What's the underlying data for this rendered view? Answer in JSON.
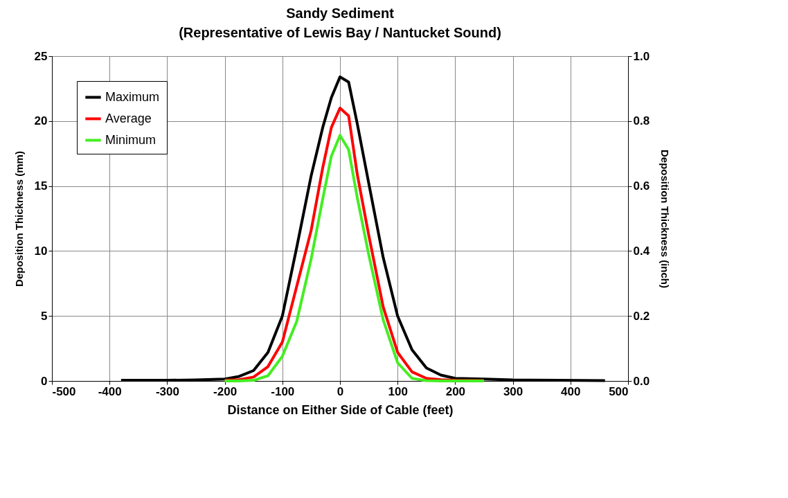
{
  "chart_data": {
    "type": "line",
    "title": "Sandy Sediment",
    "subtitle": "(Representative of Lewis Bay / Nantucket Sound)",
    "xlabel": "Distance on Either Side of Cable (feet)",
    "ylabel": "Deposition Thickness (mm)",
    "y2label": "Deposition Thickness (inch)",
    "xlim": [
      -500,
      500
    ],
    "xticks": [
      -500,
      -400,
      -300,
      -200,
      -100,
      0,
      100,
      200,
      300,
      400,
      500
    ],
    "ylim": [
      0,
      25
    ],
    "yticks": [
      0,
      5,
      10,
      15,
      20,
      25
    ],
    "y2lim": [
      0,
      1
    ],
    "y2ticks": [
      {
        "value": 0,
        "label": "0.0"
      },
      0.2,
      0.4,
      0.6,
      0.8,
      {
        "value": 1,
        "label": "1.0"
      }
    ],
    "grid": true,
    "legend": "top left",
    "marker": "none",
    "line_style": "solid",
    "series": [
      {
        "name": "Maximum",
        "color": "#000000",
        "x": [
          -380,
          -300,
          -250,
          -200,
          -175,
          -150,
          -125,
          -100,
          -75,
          -50,
          -30,
          -15,
          0,
          15,
          30,
          50,
          75,
          100,
          125,
          150,
          175,
          200,
          250,
          300,
          380,
          460
        ],
        "values": [
          0.05,
          0.05,
          0.08,
          0.15,
          0.35,
          0.8,
          2.2,
          5.0,
          10.3,
          15.8,
          19.5,
          21.8,
          23.4,
          23.0,
          19.8,
          15.2,
          9.5,
          5.0,
          2.4,
          1.0,
          0.45,
          0.2,
          0.15,
          0.08,
          0.05,
          0.03
        ]
      },
      {
        "name": "Average",
        "color": "#ff0000",
        "x": [
          -200,
          -175,
          -150,
          -125,
          -100,
          -75,
          -50,
          -30,
          -15,
          0,
          15,
          30,
          50,
          75,
          100,
          125,
          150,
          175,
          200,
          250
        ],
        "values": [
          0.05,
          0.1,
          0.3,
          1.1,
          3.0,
          7.3,
          11.6,
          16.4,
          19.5,
          21.0,
          20.4,
          15.9,
          11.2,
          5.7,
          2.2,
          0.7,
          0.2,
          0.1,
          0.05,
          0.03
        ]
      },
      {
        "name": "Minimum",
        "color": "#44ee22",
        "x": [
          -200,
          -175,
          -150,
          -125,
          -100,
          -75,
          -50,
          -30,
          -15,
          0,
          15,
          30,
          50,
          75,
          100,
          125,
          150,
          175,
          200,
          250
        ],
        "values": [
          0,
          0,
          0.05,
          0.4,
          1.9,
          4.6,
          9.4,
          14.0,
          17.3,
          18.9,
          17.8,
          14.1,
          9.7,
          4.7,
          1.4,
          0.2,
          0.02,
          0,
          0,
          0
        ]
      }
    ]
  }
}
